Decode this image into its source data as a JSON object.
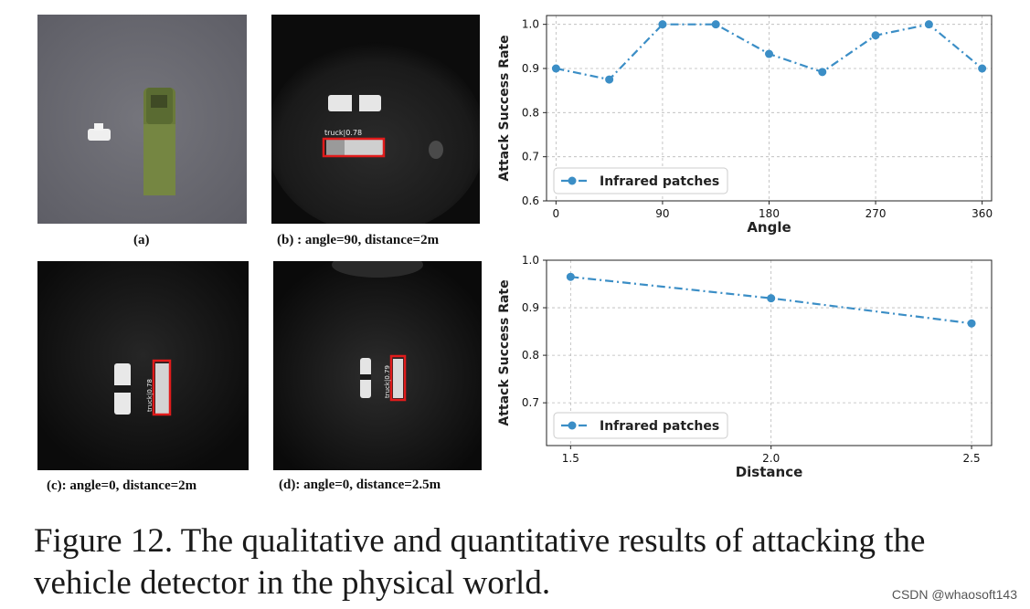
{
  "subfigures": {
    "a": {
      "label": "(a)"
    },
    "b": {
      "label": "(b) :  angle=90, distance=2m",
      "detection": "truck|0.78"
    },
    "c": {
      "label": "(c): angle=0, distance=2m",
      "detection": "truck|0.78"
    },
    "d": {
      "label": "(d):  angle=0, distance=2.5m",
      "detection": "truck|0.79"
    }
  },
  "caption": {
    "line1": "Figure 12. The qualitative and quantitative results of attacking the",
    "line2": "vehicle detector in the physical world."
  },
  "watermark": "CSDN @whaosoft143",
  "colors": {
    "series": "#3b8ec6",
    "grid": "#b8b8b8",
    "detection_box": "#e01b1b"
  },
  "chart_data": [
    {
      "type": "line",
      "xlabel": "Angle",
      "ylabel": "Attack Success Rate",
      "x": [
        0,
        45,
        90,
        135,
        180,
        225,
        270,
        315,
        360
      ],
      "xticks": [
        "0",
        "90",
        "180",
        "270",
        "360"
      ],
      "xtick_values": [
        0,
        90,
        180,
        270,
        360
      ],
      "yticks": [
        "0.6",
        "0.7",
        "0.8",
        "0.9",
        "1.0"
      ],
      "ytick_values": [
        0.6,
        0.7,
        0.8,
        0.9,
        1.0
      ],
      "xlim": [
        -8,
        368
      ],
      "ylim": [
        0.6,
        1.02
      ],
      "series": [
        {
          "name": "Infrared patches",
          "values": [
            0.9,
            0.875,
            1.0,
            1.0,
            0.933,
            0.892,
            0.975,
            1.0,
            0.9
          ]
        }
      ],
      "legend": "bottom-left",
      "grid": true,
      "line_style": "dash-dot"
    },
    {
      "type": "line",
      "xlabel": "Distance",
      "ylabel": "Attack Success Rate",
      "x": [
        1.5,
        2.0,
        2.5
      ],
      "xticks": [
        "1.5",
        "2.0",
        "2.5"
      ],
      "xtick_values": [
        1.5,
        2.0,
        2.5
      ],
      "yticks": [
        "0.7",
        "0.8",
        "0.9",
        "1.0"
      ],
      "ytick_values": [
        0.7,
        0.8,
        0.9,
        1.0
      ],
      "xlim": [
        1.44,
        2.55
      ],
      "ylim": [
        0.61,
        1.0
      ],
      "series": [
        {
          "name": "Infrared patches",
          "values": [
            0.965,
            0.92,
            0.867
          ]
        }
      ],
      "legend": "bottom-left",
      "grid": true,
      "line_style": "dash-dot"
    }
  ]
}
